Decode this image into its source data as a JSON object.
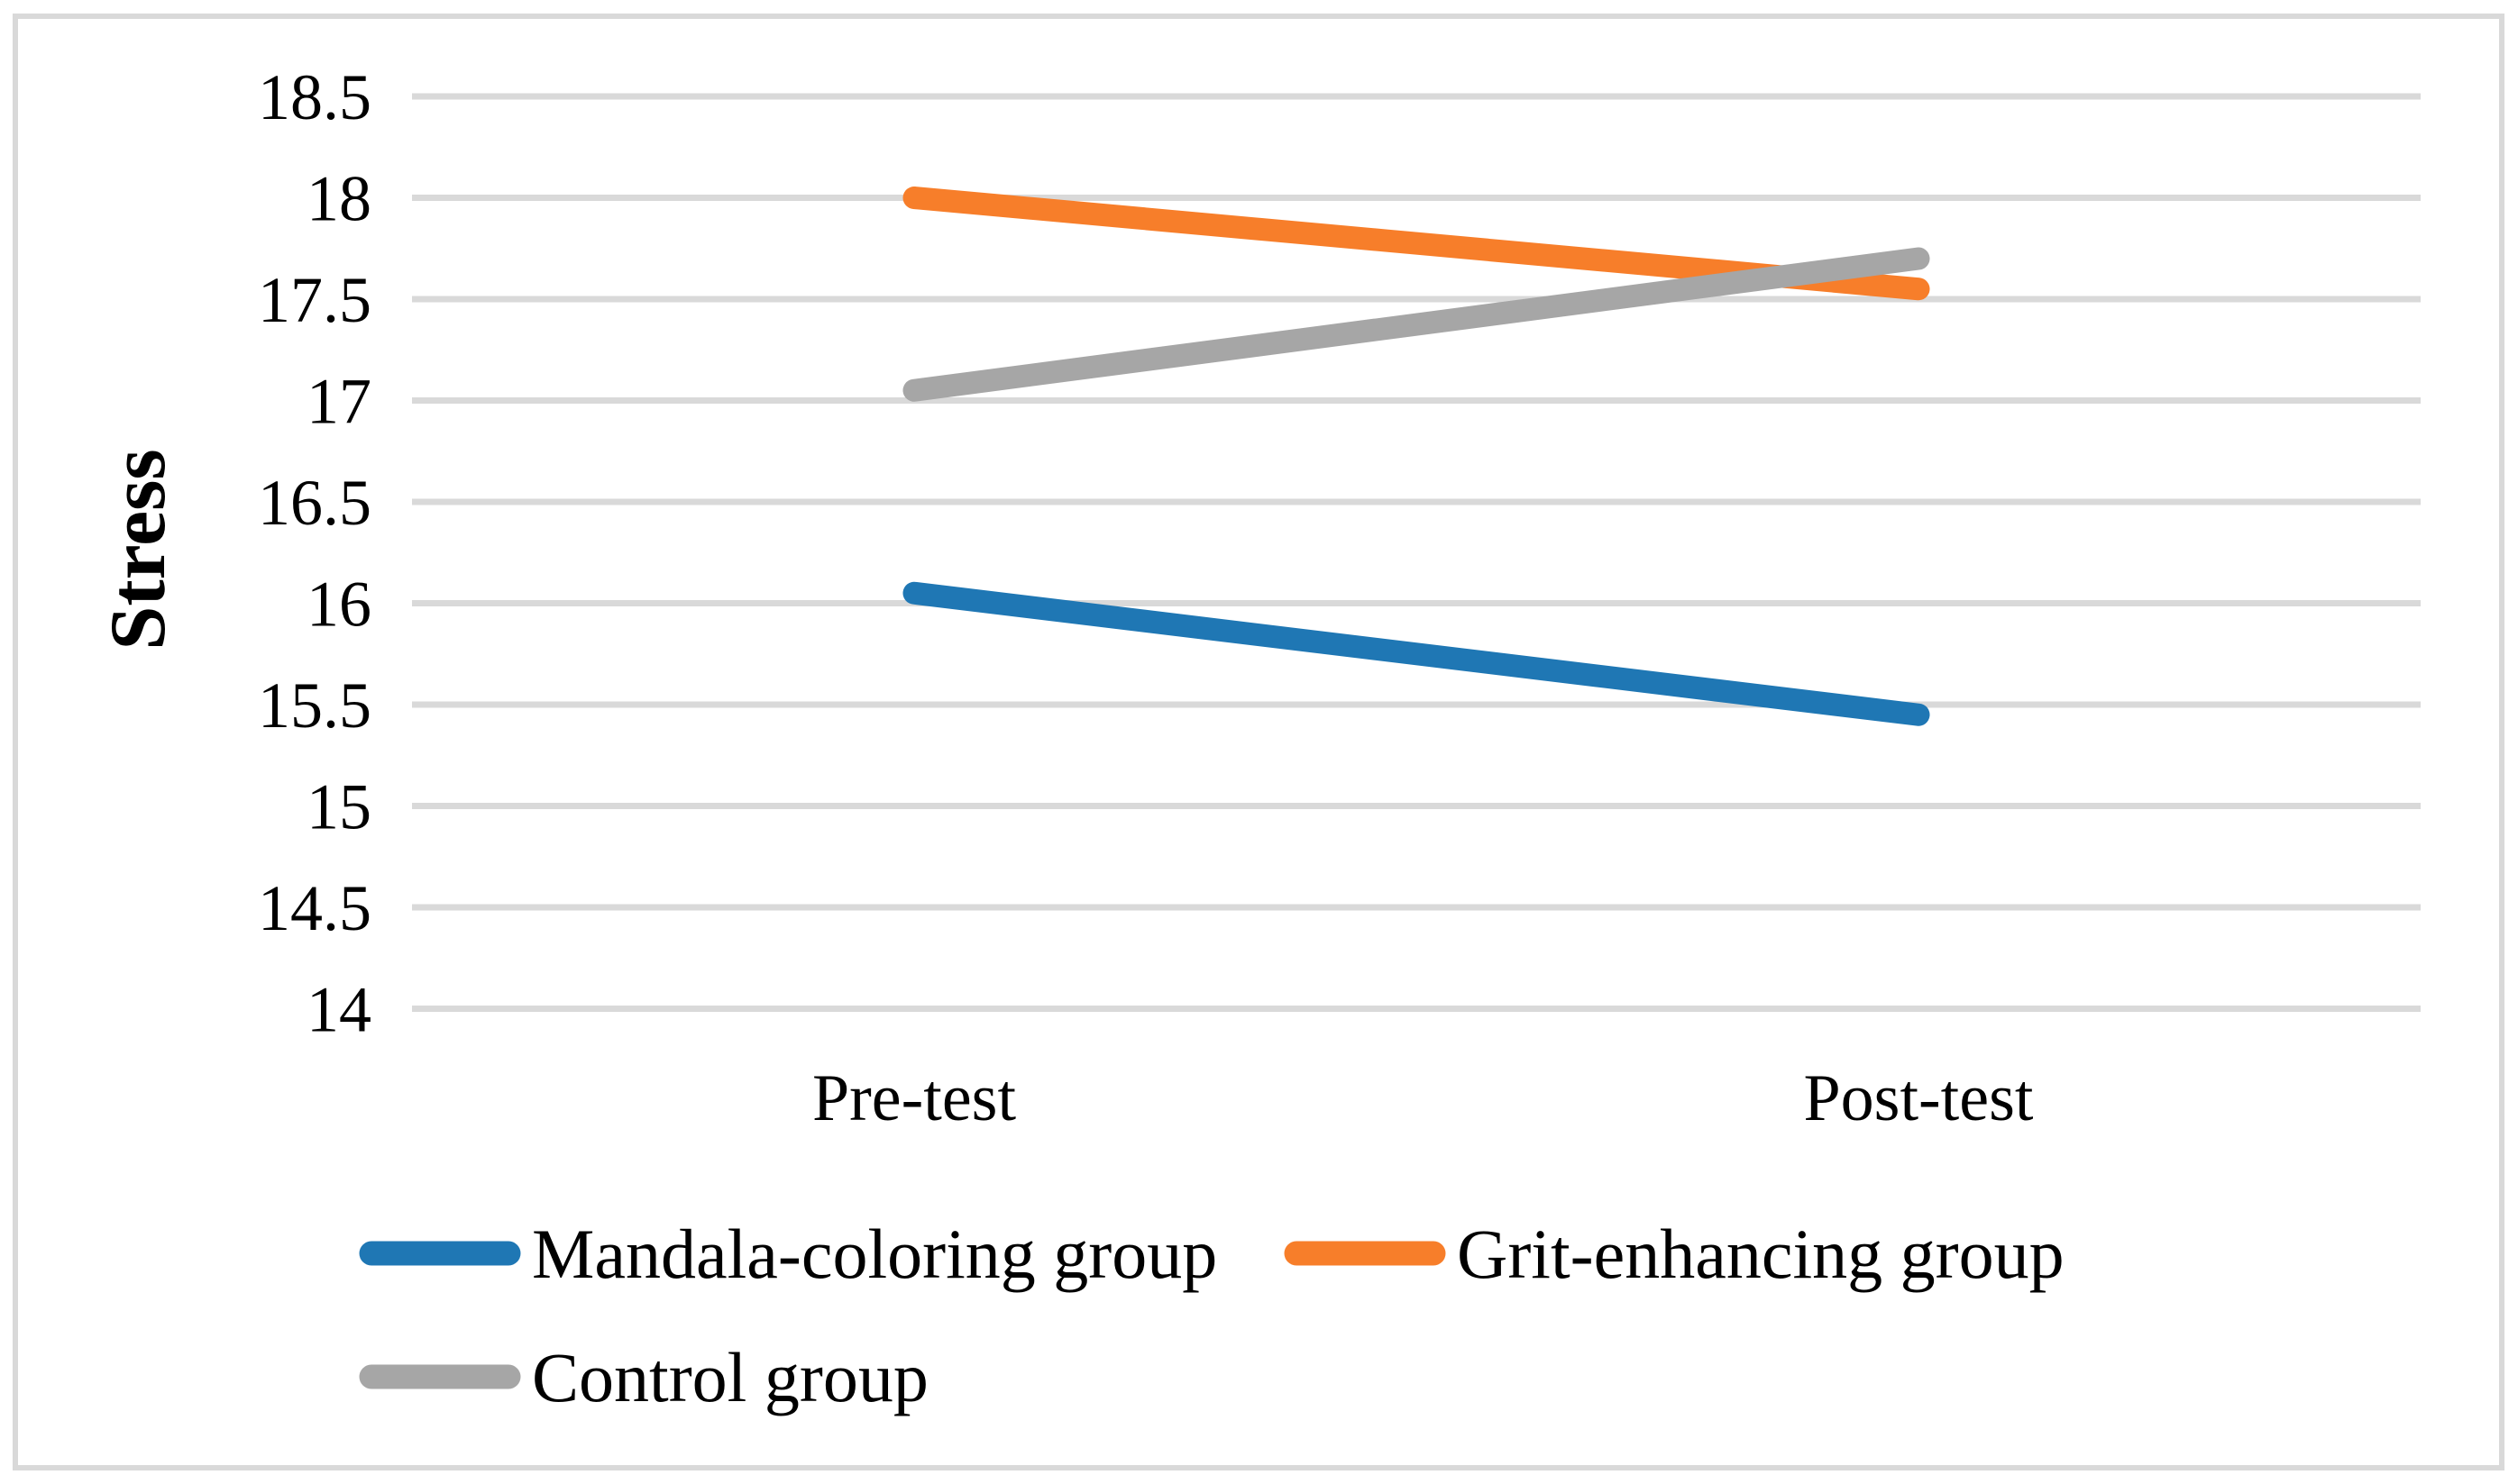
{
  "figure": {
    "background_color": "#FFFFFF",
    "frame_border_color": "#D9D9D9",
    "gridline_color": "#D9D9D9"
  },
  "chart_data": {
    "type": "line",
    "title": "",
    "xlabel": "",
    "ylabel": "Stress",
    "categories": [
      "Pre-test",
      "Post-test"
    ],
    "series": [
      {
        "name": "Mandala-coloring group",
        "values": [
          16.05,
          15.45
        ],
        "color": "#1F77B4"
      },
      {
        "name": "Grit-enhancing group",
        "values": [
          18.0,
          17.55
        ],
        "color": "#F77E2A"
      },
      {
        "name": "Control group",
        "values": [
          17.05,
          17.7
        ],
        "color": "#A6A6A6"
      }
    ],
    "ylim": [
      14,
      18.5
    ],
    "ytick_step": 0.5,
    "ytick_labels": [
      "14",
      "14.5",
      "15",
      "15.5",
      "16",
      "16.5",
      "17",
      "17.5",
      "18",
      "18.5"
    ],
    "grid": "horizontal-only",
    "axis_lines": "none",
    "legend_position": "bottom-left-two-rows"
  }
}
